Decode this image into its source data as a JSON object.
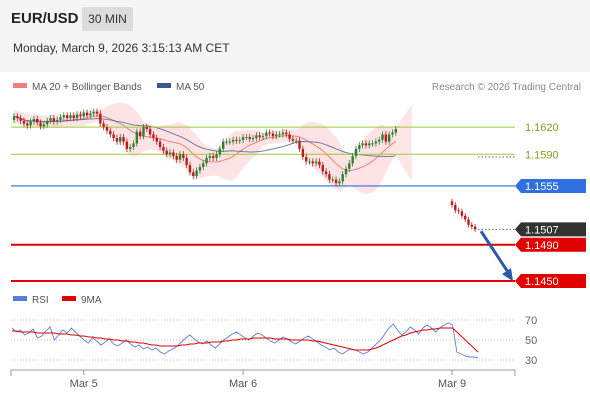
{
  "header": {
    "pair": "EUR/USD",
    "timeframe": "30 MIN",
    "datetime": "Monday, March 9, 2026 3:15:13 AM CET"
  },
  "colors": {
    "up": "#2e7d32",
    "down": "#b71c1c",
    "bollinger": "#f08080",
    "ma50": "#3a5a8c",
    "resistance": "#9acd32",
    "pivot": "#2f6fde",
    "support": "#e00000",
    "current": "#333333",
    "arrow": "#2a5aa6",
    "rsi": "#5b7fd6",
    "rsi_ma": "#e00000"
  },
  "chart_data": [
    {
      "type": "candlestick",
      "legend": [
        {
          "label": "MA 20 + Bollinger Bands",
          "color": "#f08080"
        },
        {
          "label": "MA 50",
          "color": "#3a5a8c"
        }
      ],
      "credit": "Research © 2026 Trading Central",
      "ylim": [
        1.144,
        1.165
      ],
      "x_ticks": [
        {
          "label": "Mar 5",
          "index": 21
        },
        {
          "label": "Mar 6",
          "index": 69
        },
        {
          "label": "Mar 9",
          "index": 116
        }
      ],
      "close": [
        1.1632,
        1.163,
        1.1627,
        1.1624,
        1.1622,
        1.1626,
        1.1629,
        1.1625,
        1.1621,
        1.1623,
        1.1627,
        1.163,
        1.1626,
        1.1628,
        1.1631,
        1.1633,
        1.163,
        1.1633,
        1.163,
        1.1634,
        1.1632,
        1.1636,
        1.1633,
        1.1635,
        1.1637,
        1.1635,
        1.1624,
        1.162,
        1.1616,
        1.1612,
        1.1608,
        1.1604,
        1.1609,
        1.1604,
        1.1596,
        1.1598,
        1.1602,
        1.1615,
        1.161,
        1.162,
        1.1618,
        1.1612,
        1.1608,
        1.1604,
        1.1598,
        1.1594,
        1.159,
        1.1592,
        1.1588,
        1.1584,
        1.159,
        1.1586,
        1.1578,
        1.157,
        1.1566,
        1.1572,
        1.1576,
        1.158,
        1.1586,
        1.1588,
        1.1586,
        1.159,
        1.1596,
        1.1604,
        1.1604,
        1.1604,
        1.1606,
        1.1605,
        1.1606,
        1.1609,
        1.1609,
        1.1607,
        1.1608,
        1.1611,
        1.1609,
        1.161,
        1.1614,
        1.1613,
        1.161,
        1.1612,
        1.1612,
        1.1614,
        1.1612,
        1.1607,
        1.1605,
        1.1605,
        1.1596,
        1.1587,
        1.1582,
        1.1582,
        1.158,
        1.1582,
        1.1578,
        1.1571,
        1.1568,
        1.1562,
        1.1562,
        1.1558,
        1.156,
        1.1568,
        1.1574,
        1.158,
        1.1588,
        1.1596,
        1.16,
        1.1602,
        1.16,
        1.1602,
        1.1602,
        1.1604,
        1.1606,
        1.1612,
        1.1604,
        1.1612,
        1.1614,
        1.1618
      ],
      "open": [
        1.1628,
        1.1632,
        1.163,
        1.1627,
        1.1624,
        1.1622,
        1.1626,
        1.1629,
        1.1625,
        1.1621,
        1.1623,
        1.1627,
        1.163,
        1.1626,
        1.1628,
        1.1631,
        1.1633,
        1.163,
        1.1633,
        1.163,
        1.1634,
        1.1632,
        1.1636,
        1.1633,
        1.1635,
        1.1637,
        1.1635,
        1.1624,
        1.162,
        1.1616,
        1.1612,
        1.1608,
        1.1604,
        1.1609,
        1.1604,
        1.1596,
        1.1598,
        1.1602,
        1.1615,
        1.161,
        1.162,
        1.1618,
        1.1612,
        1.1608,
        1.1604,
        1.1598,
        1.1594,
        1.159,
        1.1592,
        1.1588,
        1.1584,
        1.159,
        1.1586,
        1.1578,
        1.157,
        1.1566,
        1.1572,
        1.1576,
        1.158,
        1.1586,
        1.1588,
        1.1586,
        1.159,
        1.1596,
        1.1604,
        1.1604,
        1.1604,
        1.1606,
        1.1605,
        1.1606,
        1.1609,
        1.1609,
        1.1607,
        1.1608,
        1.1611,
        1.1609,
        1.161,
        1.1614,
        1.1613,
        1.161,
        1.1612,
        1.1612,
        1.1614,
        1.1612,
        1.1607,
        1.1605,
        1.1605,
        1.1596,
        1.1587,
        1.1582,
        1.1582,
        1.158,
        1.1582,
        1.1578,
        1.1571,
        1.1568,
        1.1562,
        1.1562,
        1.1558,
        1.156,
        1.1568,
        1.1574,
        1.158,
        1.1588,
        1.1596,
        1.16,
        1.1602,
        1.16,
        1.1602,
        1.1602,
        1.1604,
        1.1606,
        1.1612,
        1.1604,
        1.1612,
        1.1614
      ],
      "gap_close": [
        1.1534,
        1.1528,
        1.1527,
        1.1522,
        1.1518,
        1.1512,
        1.151,
        1.1507
      ],
      "gap_open": [
        1.1538,
        1.1534,
        1.1528,
        1.1527,
        1.1522,
        1.1518,
        1.1512,
        1.151
      ],
      "levels": [
        {
          "value": 1.162,
          "label": "1.1620",
          "kind": "resistance"
        },
        {
          "value": 1.159,
          "label": "1.1590",
          "kind": "resistance"
        },
        {
          "value": 1.1555,
          "label": "1.1555",
          "kind": "pivot"
        },
        {
          "value": 1.1507,
          "label": "1.1507",
          "kind": "current"
        },
        {
          "value": 1.149,
          "label": "1.1490",
          "kind": "support"
        },
        {
          "value": 1.145,
          "label": "1.1450",
          "kind": "support"
        }
      ],
      "forecast_arrow": {
        "from": 1.1505,
        "to": 1.1452
      }
    },
    {
      "type": "line",
      "title": "RSI",
      "legend": [
        {
          "label": "RSI",
          "color": "#5b7fd6"
        },
        {
          "label": "9MA",
          "color": "#e00000"
        }
      ],
      "ylim": [
        22,
        80
      ],
      "y_ticks": [
        70,
        50,
        30
      ],
      "series": [
        {
          "name": "RSI",
          "values": [
            62,
            58,
            60,
            55,
            57,
            61,
            52,
            54,
            59,
            63,
            50,
            55,
            60,
            57,
            62,
            58,
            54,
            50,
            47,
            52,
            49,
            45,
            48,
            51,
            46,
            44,
            47,
            50,
            46,
            43,
            45,
            41,
            43,
            40,
            42,
            38,
            36,
            39,
            41,
            44,
            48,
            52,
            55,
            51,
            48,
            46,
            49,
            45,
            42,
            46,
            50,
            53,
            56,
            58,
            55,
            52,
            50,
            54,
            57,
            55,
            52,
            49,
            47,
            50,
            53,
            51,
            48,
            46,
            49,
            52,
            54,
            51,
            48,
            45,
            43,
            40,
            42,
            38,
            36,
            39,
            41,
            40,
            38,
            36,
            38,
            42,
            46,
            50,
            56,
            62,
            66,
            60,
            55,
            58,
            63,
            60,
            56,
            62,
            65,
            62,
            58,
            62,
            65,
            67,
            65,
            38,
            36,
            34,
            33,
            33,
            32
          ]
        },
        {
          "name": "9MA",
          "values": [
            59,
            59,
            58,
            58,
            58,
            58,
            57,
            57,
            57,
            57,
            57,
            56,
            56,
            56,
            55,
            55,
            54,
            54,
            53,
            53,
            52,
            52,
            51,
            51,
            50,
            50,
            49,
            49,
            48,
            48,
            47,
            47,
            46,
            45,
            45,
            44,
            44,
            44,
            44,
            44,
            45,
            45,
            46,
            46,
            47,
            47,
            47,
            48,
            48,
            48,
            49,
            49,
            50,
            50,
            51,
            51,
            51,
            52,
            52,
            52,
            52,
            52,
            51,
            51,
            51,
            51,
            50,
            50,
            50,
            50,
            50,
            49,
            49,
            48,
            47,
            46,
            45,
            44,
            43,
            42,
            41,
            40,
            40,
            40,
            40,
            41,
            42,
            44,
            46,
            48,
            50,
            52,
            54,
            55,
            57,
            58,
            59,
            60,
            60,
            61,
            61,
            62,
            62,
            62,
            62,
            58,
            54,
            50,
            46,
            42,
            38
          ]
        }
      ]
    }
  ]
}
